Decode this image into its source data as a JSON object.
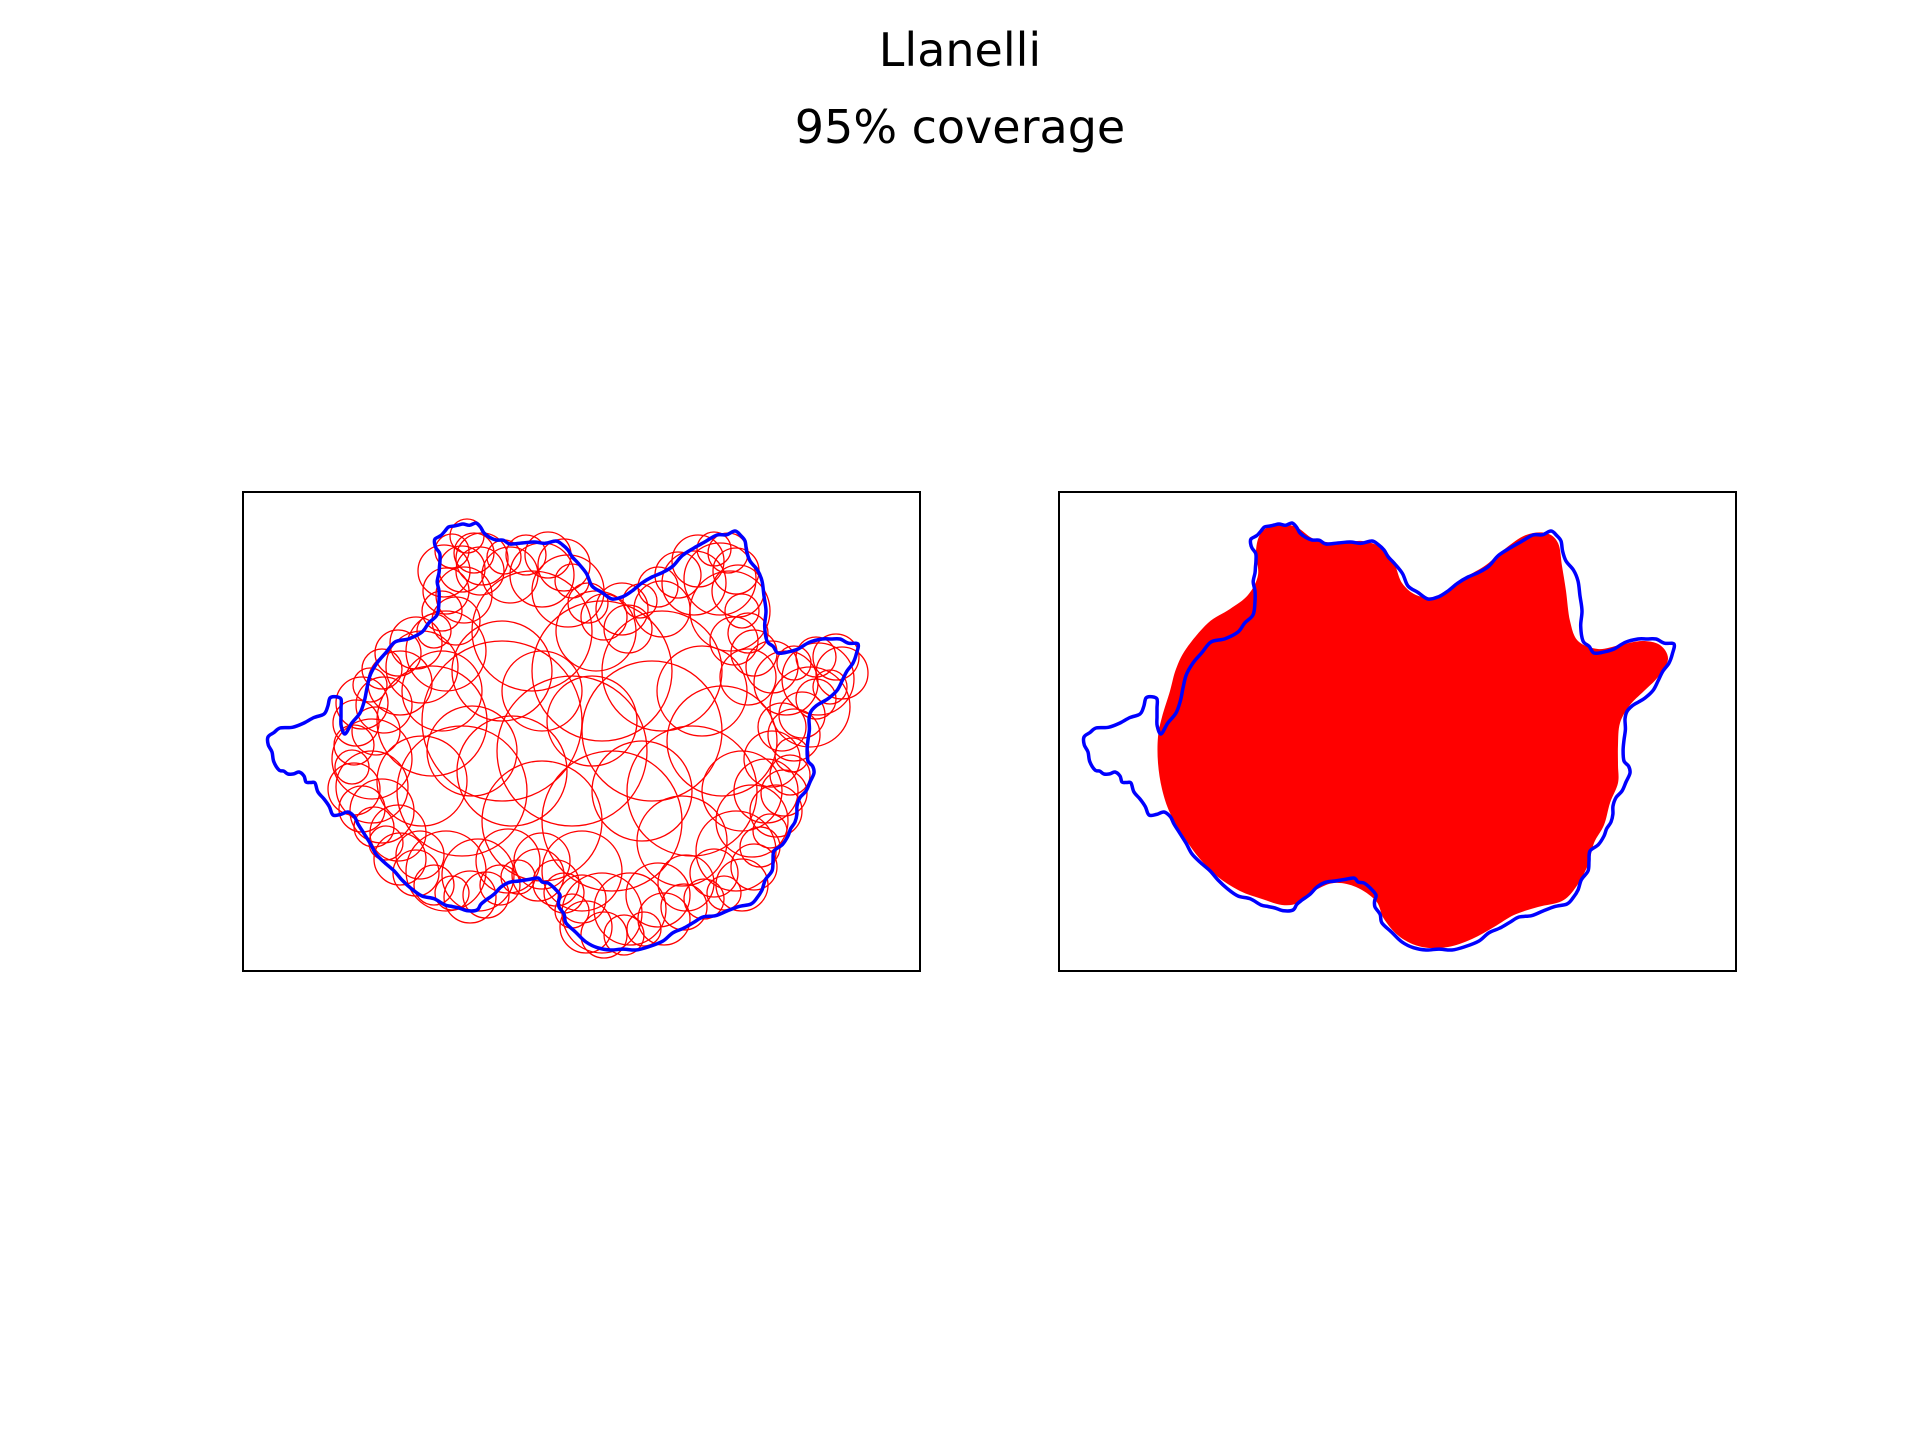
{
  "figure": {
    "title": "Llanelli",
    "subtitle": "95% coverage",
    "background_color": "#ffffff"
  },
  "panels": [
    {
      "id": "circle-cover",
      "boundary_color": "#0000ff",
      "circle_color": "#ff0000",
      "mode": "circles"
    },
    {
      "id": "union-fill",
      "boundary_color": "#0000ff",
      "fill_color": "#ff0000",
      "mode": "filled"
    }
  ]
}
